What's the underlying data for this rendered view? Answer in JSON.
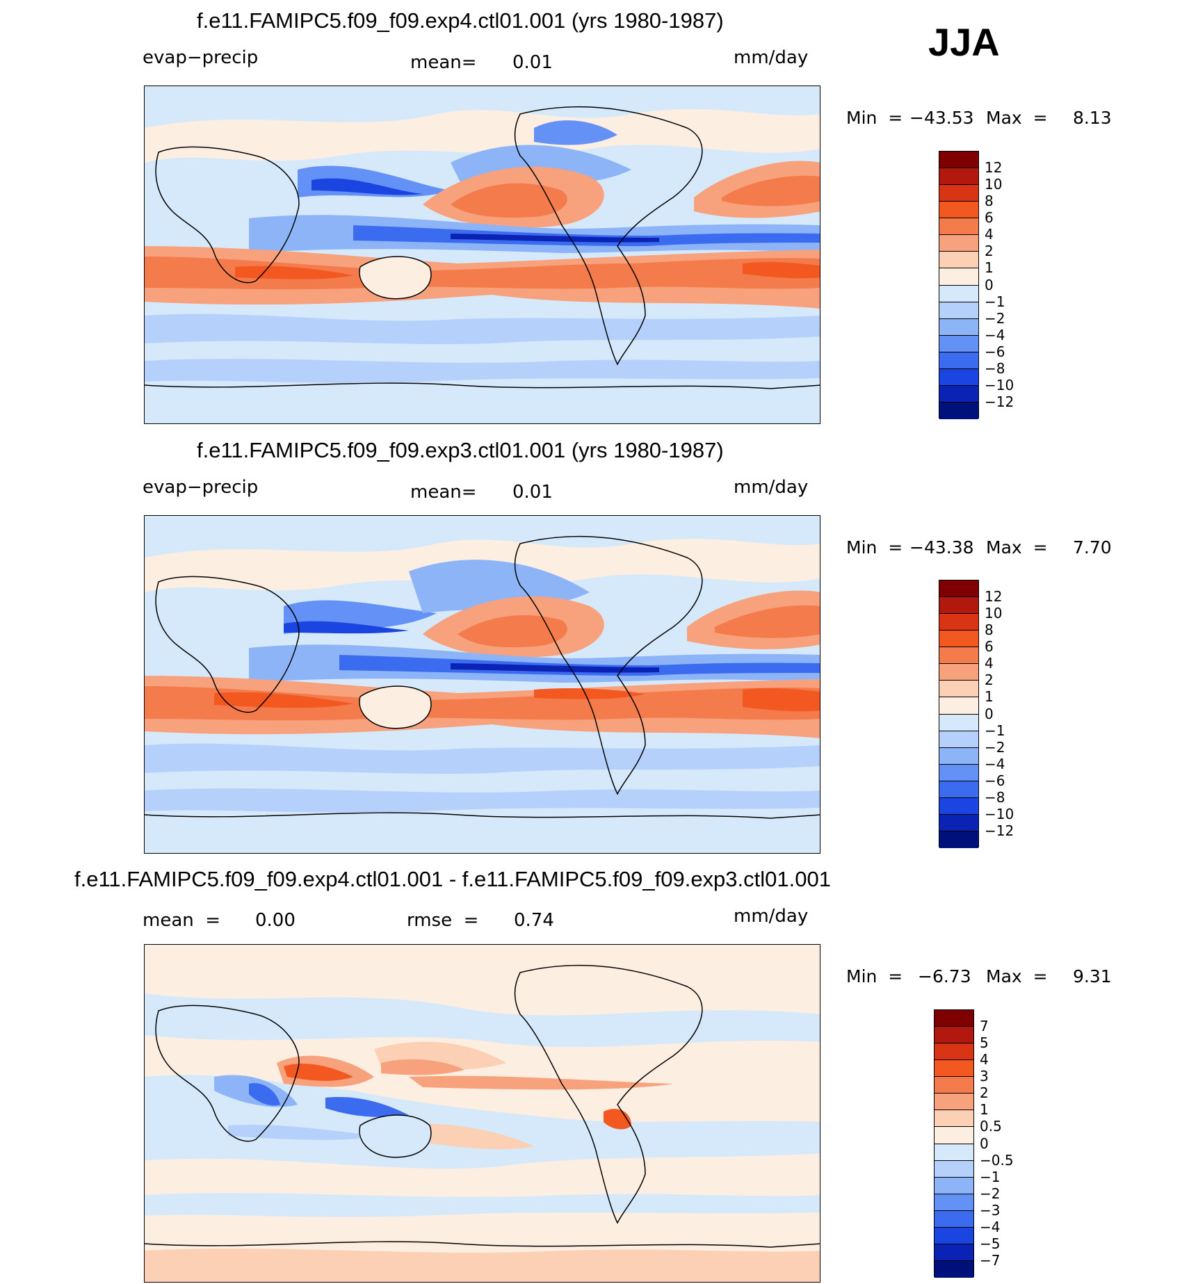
{
  "season": "JJA",
  "panels": [
    {
      "title": "f.e11.FAMIPC5.f09_f09.exp4.ctl01.001 (yrs 1980-1987)",
      "variable": "evap−precip",
      "stat1_label": "mean=",
      "stat1_value": "0.01",
      "units": "mm/day",
      "min_label": "Min  =",
      "min_value": "−43.53",
      "max_label": "Max  =",
      "max_value": "8.13"
    },
    {
      "title": "f.e11.FAMIPC5.f09_f09.exp3.ctl01.001 (yrs 1980-1987)",
      "variable": "evap−precip",
      "stat1_label": "mean=",
      "stat1_value": "0.01",
      "units": "mm/day",
      "min_label": "Min  =",
      "min_value": "−43.38",
      "max_label": "Max  =",
      "max_value": "7.70"
    },
    {
      "title": "f.e11.FAMIPC5.f09_f09.exp4.ctl01.001 - f.e11.FAMIPC5.f09_f09.exp3.ctl01.001",
      "stat1_label": "mean  =",
      "stat1_value": "0.00",
      "stat2_label": "rmse  =",
      "stat2_value": "0.74",
      "units": "mm/day",
      "min_label": "Min  =",
      "min_value": "−6.73",
      "max_label": "Max  =",
      "max_value": "9.31"
    }
  ],
  "colorbar_main": {
    "labels": [
      "12",
      "10",
      "8",
      "6",
      "4",
      "2",
      "1",
      "0",
      "−1",
      "−2",
      "−4",
      "−6",
      "−8",
      "−10",
      "−12"
    ],
    "colors": [
      "#7f0000",
      "#b2180e",
      "#d93413",
      "#f2581f",
      "#f47b4b",
      "#f8a27d",
      "#fcd0b4",
      "#fdeee2",
      "#d6e9fb",
      "#b5d1fb",
      "#8eb4f8",
      "#6391f5",
      "#3b6cf0",
      "#1a45e0",
      "#0b23b5",
      "#00107a"
    ]
  },
  "colorbar_diff": {
    "labels": [
      "7",
      "5",
      "4",
      "3",
      "2",
      "1",
      "0.5",
      "0",
      "−0.5",
      "−1",
      "−2",
      "−3",
      "−4",
      "−5",
      "−7"
    ],
    "colors": [
      "#7f0000",
      "#b2180e",
      "#d93413",
      "#f2581f",
      "#f47b4b",
      "#f8a27d",
      "#fcd0b4",
      "#fdeee2",
      "#d6e9fb",
      "#b5d1fb",
      "#8eb4f8",
      "#6391f5",
      "#3b6cf0",
      "#1a45e0",
      "#0b23b5",
      "#00107a"
    ]
  }
}
